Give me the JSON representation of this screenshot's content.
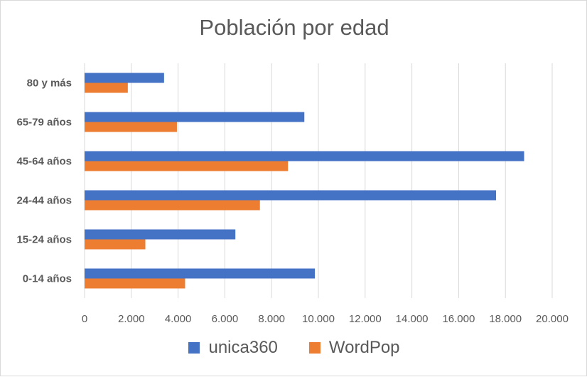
{
  "chart_data": {
    "type": "bar",
    "orientation": "horizontal",
    "title": "Población por edad",
    "categories": [
      "80 y más",
      "65-79 años",
      "45-64 años",
      "24-44 años",
      "15-24 años",
      "0-14 años"
    ],
    "series": [
      {
        "name": "unica360",
        "color": "#4472c4",
        "values": [
          3400,
          9400,
          18800,
          17600,
          6450,
          9850
        ]
      },
      {
        "name": "WordPop",
        "color": "#ed7d31",
        "values": [
          1850,
          3950,
          8700,
          7500,
          2600,
          4300
        ]
      }
    ],
    "xlim": [
      0,
      20000
    ],
    "x_ticks": [
      0,
      2000,
      4000,
      6000,
      8000,
      10000,
      12000,
      14000,
      16000,
      18000,
      20000
    ],
    "x_tick_labels": [
      "0",
      "2.000",
      "4.000",
      "6.000",
      "8.000",
      "10.000",
      "12.000",
      "14.000",
      "16.000",
      "18.000",
      "20.000"
    ],
    "xlabel": "",
    "ylabel": "",
    "grid": "vertical",
    "legend_position": "bottom"
  }
}
